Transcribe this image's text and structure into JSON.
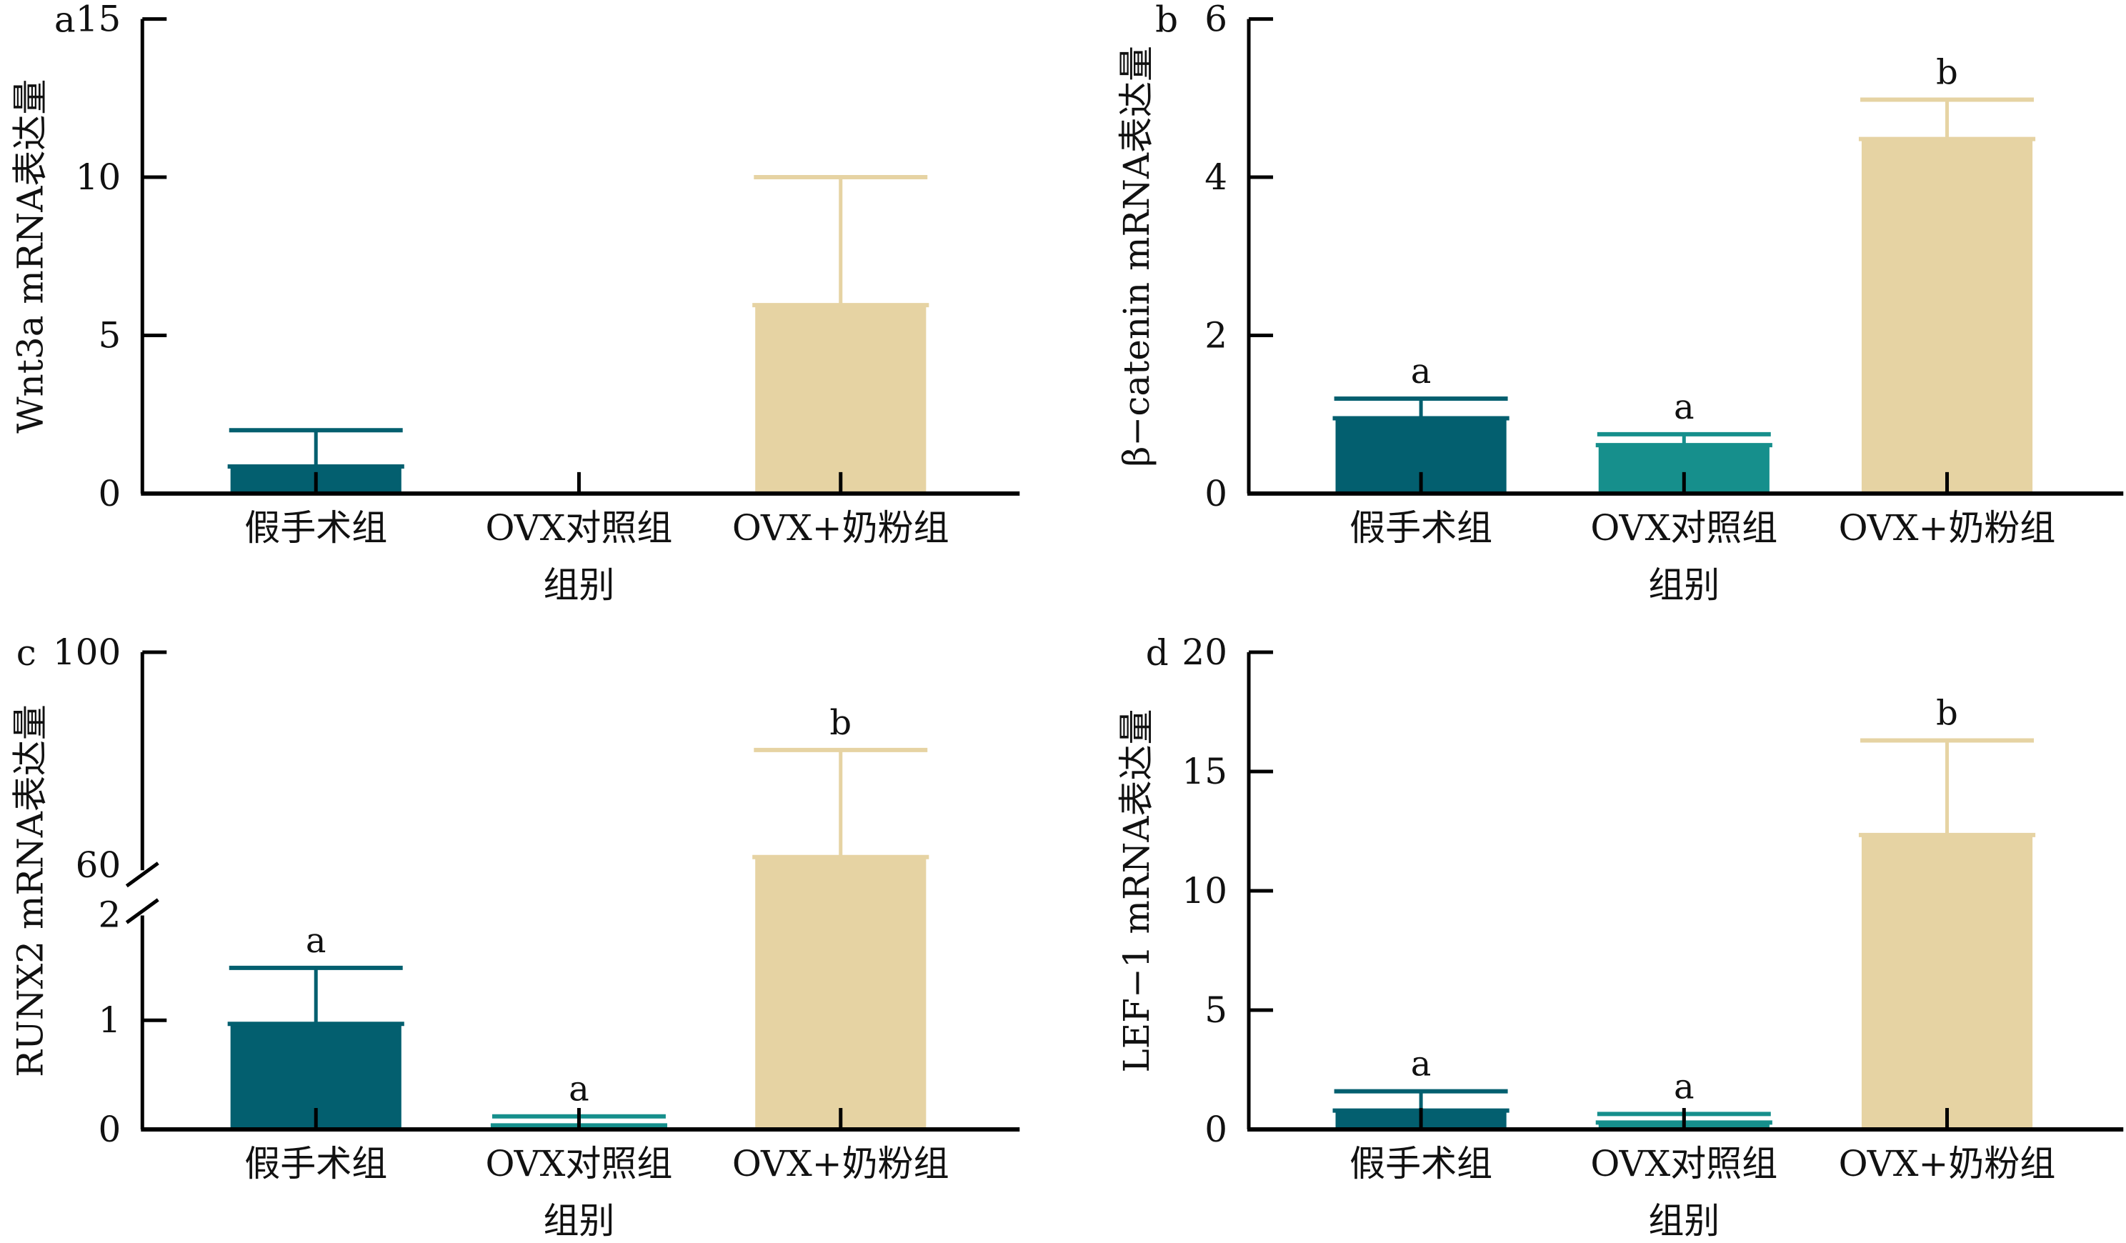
{
  "chart_data": [
    {
      "panel": "a",
      "type": "bar",
      "title": "",
      "xlabel": "组别",
      "ylabel": "Wnt3a mRNA表达量",
      "categories": [
        "假手术组",
        "OVX对照组",
        "OVX+奶粉组"
      ],
      "values": [
        0.9,
        0.0,
        6.0
      ],
      "error_upper": [
        2.0,
        0.0,
        10.0
      ],
      "significance": [
        "",
        "",
        ""
      ],
      "ylim": [
        0,
        15
      ],
      "yticks": [
        0,
        5,
        10,
        15
      ],
      "ytick_labels": [
        "0",
        "5",
        "10",
        "15"
      ],
      "axis_break": null,
      "colors": [
        "#035f6f",
        "#168f8c",
        "#e6d3a3"
      ]
    },
    {
      "panel": "b",
      "type": "bar",
      "title": "",
      "xlabel": "组别",
      "ylabel": "β−catenin mRNA表达量",
      "categories": [
        "假手术组",
        "OVX对照组",
        "OVX+奶粉组"
      ],
      "values": [
        0.97,
        0.63,
        4.5
      ],
      "error_upper": [
        1.2,
        0.75,
        4.98
      ],
      "significance": [
        "a",
        "a",
        "b"
      ],
      "ylim": [
        0,
        6
      ],
      "yticks": [
        0,
        2,
        4,
        6
      ],
      "ytick_labels": [
        "0",
        "2",
        "4",
        "6"
      ],
      "axis_break": null,
      "colors": [
        "#035f6f",
        "#168f8c",
        "#e6d3a3"
      ]
    },
    {
      "panel": "c",
      "type": "bar",
      "title": "",
      "xlabel": "组别",
      "ylabel": "RUNX2 mRNA表达量",
      "categories": [
        "假手术组",
        "OVX对照组",
        "OVX+奶粉组"
      ],
      "values": [
        0.98,
        0.05,
        63.4
      ],
      "error_upper": [
        1.48,
        0.12,
        82.4
      ],
      "significance": [
        "a",
        "a",
        "b"
      ],
      "ylim": [
        0,
        100
      ],
      "yticks": [
        0,
        1,
        2,
        60,
        100
      ],
      "ytick_labels": [
        "0",
        "1",
        "2",
        "60",
        "100"
      ],
      "axis_break": {
        "lower": [
          0,
          2
        ],
        "upper": [
          60,
          100
        ]
      },
      "colors": [
        "#035f6f",
        "#168f8c",
        "#e6d3a3"
      ]
    },
    {
      "panel": "d",
      "type": "bar",
      "title": "",
      "xlabel": "组别",
      "ylabel": "LEF−1 mRNA表达量",
      "categories": [
        "假手术组",
        "OVX对照组",
        "OVX+奶粉组"
      ],
      "values": [
        0.85,
        0.35,
        12.4
      ],
      "error_upper": [
        1.6,
        0.65,
        16.3
      ],
      "significance": [
        "a",
        "a",
        "b"
      ],
      "ylim": [
        0,
        20
      ],
      "yticks": [
        0,
        5,
        10,
        15,
        20
      ],
      "ytick_labels": [
        "0",
        "5",
        "10",
        "15",
        "20"
      ],
      "axis_break": null,
      "colors": [
        "#035f6f",
        "#168f8c",
        "#e6d3a3"
      ]
    }
  ]
}
